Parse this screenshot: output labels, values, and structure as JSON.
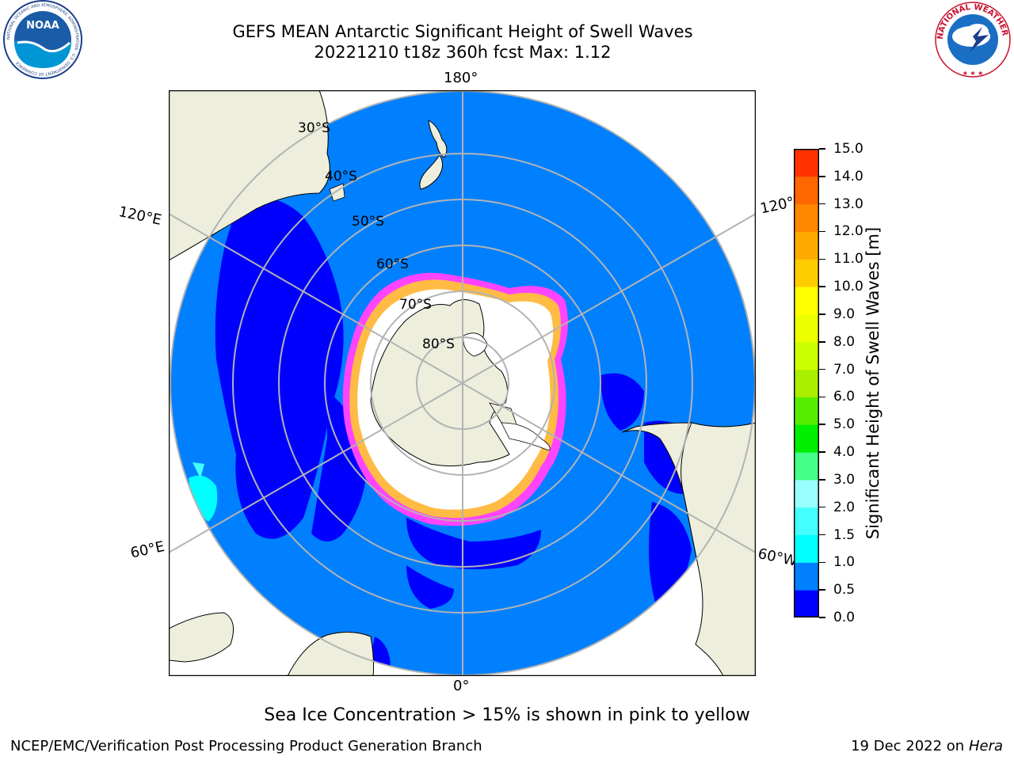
{
  "title_line1": "GEFS MEAN Antarctic Significant Height of Swell Waves",
  "title_line2": "20221210 t18z 360h fcst   Max: 1.12",
  "logos": {
    "noaa_text": "NOAA",
    "noaa_ring_text": "NATIONAL OCEANIC AND ATMOSPHERIC ADMINISTRATION · U.S. DEPARTMENT OF COMMERCE",
    "nws_ring_text": "NATIONAL WEATHER SERVICE"
  },
  "map": {
    "projection": "south-polar-stereographic",
    "longitude_labels": {
      "top": "180°",
      "bottom": "0°",
      "upper_left": "120°E",
      "lower_left": "60°E",
      "upper_right": "120°W",
      "lower_right": "60°W"
    },
    "latitude_labels": [
      "30°S",
      "40°S",
      "50°S",
      "60°S",
      "70°S",
      "80°S"
    ],
    "colors": {
      "ocean_main": "#0080ff",
      "ocean_low": "#0000ff",
      "ocean_cyan": "#00ffff",
      "land": "#eeeedd",
      "ice_white": "#ffffff",
      "ice_pink": "#ff44ff",
      "ice_orange": "#ffbb44",
      "grid": "#b3b3b3"
    }
  },
  "colorbar": {
    "title": "Significant Height of Swell Waves [m]",
    "ticks": [
      "0.0",
      "0.5",
      "1.0",
      "1.5",
      "2.0",
      "3.0",
      "4.0",
      "5.0",
      "6.0",
      "7.0",
      "8.0",
      "9.0",
      "10.0",
      "11.0",
      "12.0",
      "13.0",
      "14.0",
      "15.0"
    ],
    "colors": [
      "#0000ff",
      "#0080ff",
      "#00ffff",
      "#44ffff",
      "#99ffff",
      "#44ff88",
      "#00ee00",
      "#55ee00",
      "#aaee00",
      "#ccff00",
      "#eeff00",
      "#ffff00",
      "#ffcc00",
      "#ffaa00",
      "#ff8800",
      "#ff6600",
      "#ff3300",
      "#ff0000"
    ]
  },
  "note": "Sea Ice Concentration > 15% is shown in pink to yellow",
  "footer": {
    "left": "NCEP/EMC/Verification Post Processing Product Generation Branch",
    "right_prefix": "19 Dec 2022 on",
    "right_host": "Hera"
  }
}
